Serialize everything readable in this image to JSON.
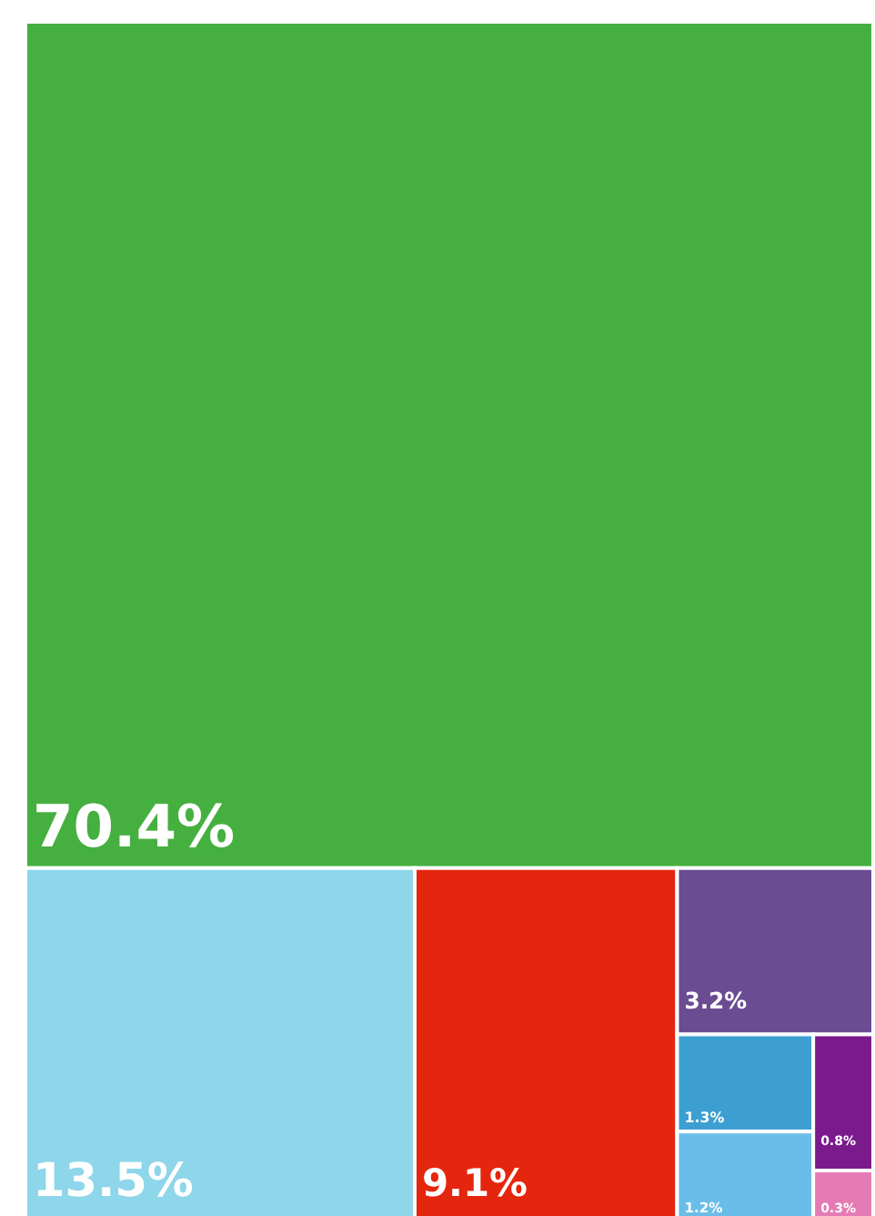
{
  "chart_data": {
    "type": "other",
    "categories": [
      null,
      null,
      null,
      null,
      null,
      null,
      null,
      null
    ],
    "values": [
      70.4,
      13.5,
      9.1,
      3.2,
      1.3,
      1.2,
      0.8,
      0.3
    ],
    "colors": [
      "#45b03f",
      "#8ed6ea",
      "#e5260e",
      "#6b4c93",
      "#3d9fd1",
      "#6bbde9",
      "#7b1a8c",
      "#e57bb4"
    ],
    "value_labels": [
      "70.4%",
      "13.5%",
      "9.1%",
      "3.2%",
      "1.3%",
      "1.2%",
      "0.8%",
      "0.3%"
    ]
  }
}
